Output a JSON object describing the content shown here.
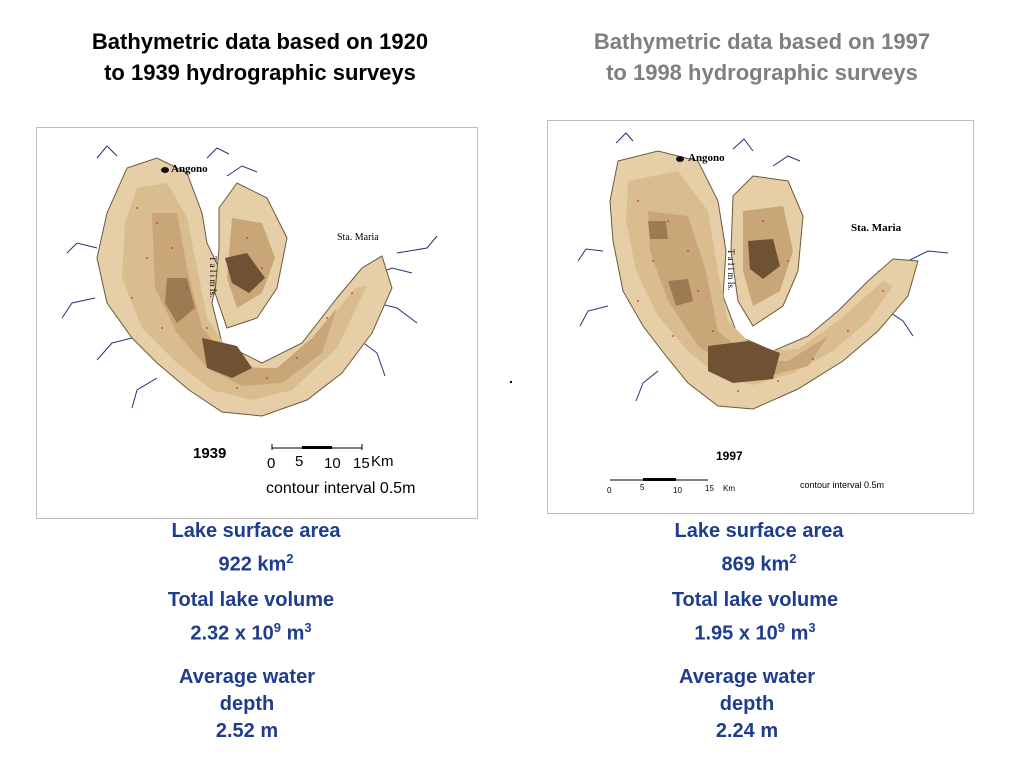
{
  "left": {
    "title": "Bathymetric data based on 1920 to 1939 hydrographic surveys",
    "map": {
      "year": "1939",
      "places": {
        "angono": "Angono",
        "sta_maria": "Sta. Maria",
        "talim": "T a l i m Is."
      },
      "scale_ticks": [
        "0",
        "5",
        "10",
        "15"
      ],
      "scale_unit": "Km",
      "contour": "contour interval 0.5m"
    },
    "stats": {
      "area_label": "Lake surface area",
      "area_value": "922 km",
      "area_sup": "2",
      "volume_label": "Total lake volume",
      "volume_value": "2.32 x 10",
      "volume_exp": "9",
      "volume_unit": " m",
      "volume_unit_sup": "3",
      "depth_label": "Average water depth",
      "depth_value": "2.52 m"
    }
  },
  "right": {
    "title": "Bathymetric data based on 1997 to 1998 hydrographic surveys",
    "map": {
      "year": "1997",
      "places": {
        "angono": "Angono",
        "sta_maria": "Sta. Maria",
        "talim": "T a l i m Is."
      },
      "scale_ticks": [
        "0",
        "5",
        "10",
        "15"
      ],
      "scale_unit": "Km",
      "contour": "contour interval 0.5m"
    },
    "stats": {
      "area_label": "Lake surface area",
      "area_value": "869 km",
      "area_sup": "2",
      "volume_label": "Total lake volume",
      "volume_value": "1.95 x 10",
      "volume_exp": "9",
      "volume_unit": " m",
      "volume_unit_sup": "3",
      "depth_label": "Average water depth",
      "depth_value": "2.24 m"
    }
  },
  "colors": {
    "lake_shallow": "#e6cfa6",
    "lake_mid": "#c9a677",
    "lake_deep": "#9c7a52",
    "lake_deepest": "#6e5233",
    "river": "#2b2f7a",
    "stat_text": "#1f3d8e"
  }
}
